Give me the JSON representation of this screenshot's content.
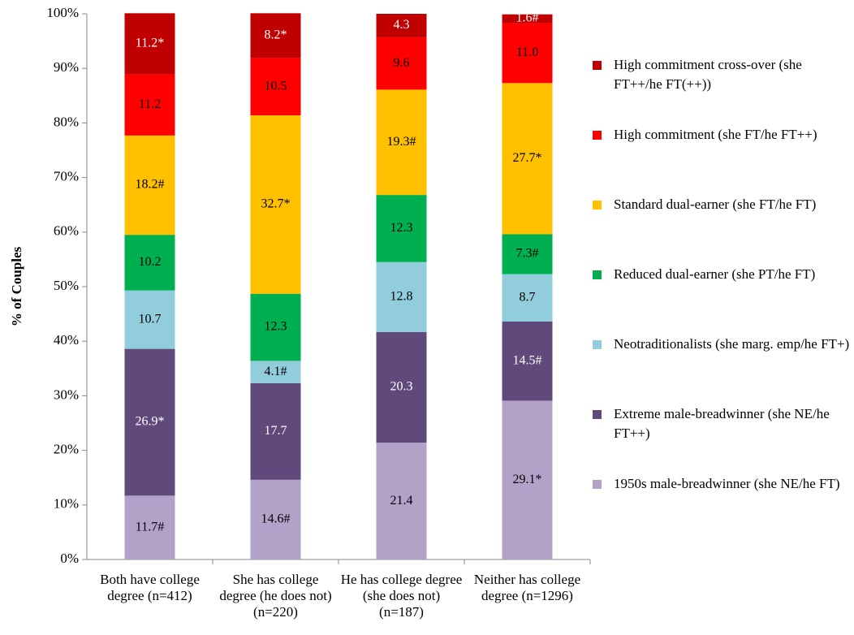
{
  "chart_data": {
    "type": "stacked_bar",
    "y_axis_label": "% of Couples",
    "categories": [
      "Both have college degree (n=412)",
      "She has college degree (he does not) (n=220)",
      "He has college degree (she does not) (n=187)",
      "Neither has college degree (n=1296)"
    ],
    "ylim": [
      0,
      100
    ],
    "yticks": [
      {
        "value": 0,
        "label": "0%"
      },
      {
        "value": 10,
        "label": "10%"
      },
      {
        "value": 20,
        "label": "20%"
      },
      {
        "value": 30,
        "label": "30%"
      },
      {
        "value": 40,
        "label": "40%"
      },
      {
        "value": 50,
        "label": "50%"
      },
      {
        "value": 60,
        "label": "60%"
      },
      {
        "value": 70,
        "label": "70%"
      },
      {
        "value": 80,
        "label": "80%"
      },
      {
        "value": 90,
        "label": "90%"
      },
      {
        "value": 100,
        "label": "100%"
      }
    ],
    "series": [
      {
        "name": "1950s male-breadwinner (she NE/he FT)",
        "color": "#b3a2c7",
        "label_color": "#000000",
        "values": [
          11.7,
          14.6,
          21.4,
          29.1
        ],
        "value_labels": [
          "11.7#",
          "14.6#",
          "21.4",
          "29.1*"
        ]
      },
      {
        "name": "Extreme male-breadwinner (she NE/he FT++)",
        "color": "#604a7b",
        "label_color": "#ffffff",
        "values": [
          26.9,
          17.7,
          20.3,
          14.5
        ],
        "value_labels": [
          "26.9*",
          "17.7",
          "20.3",
          "14.5#"
        ]
      },
      {
        "name": "Neotraditionalists (she marg. emp/he FT+)",
        "color": "#92cddc",
        "label_color": "#000000",
        "values": [
          10.7,
          4.1,
          12.8,
          8.7
        ],
        "value_labels": [
          "10.7",
          "4.1#",
          "12.8",
          "8.7"
        ]
      },
      {
        "name": "Reduced dual-earner (she PT/he FT)",
        "color": "#00b050",
        "label_color": "#000000",
        "values": [
          10.2,
          12.3,
          12.3,
          7.3
        ],
        "value_labels": [
          "10.2",
          "12.3",
          "12.3",
          "7.3#"
        ]
      },
      {
        "name": "Standard dual-earner (she FT/he FT)",
        "color": "#ffc000",
        "label_color": "#000000",
        "values": [
          18.2,
          32.7,
          19.3,
          27.7
        ],
        "value_labels": [
          "18.2#",
          "32.7*",
          "19.3#",
          "27.7*"
        ]
      },
      {
        "name": "High commitment (she FT/he FT++)",
        "color": "#ff0000",
        "label_color": "#000000",
        "values": [
          11.2,
          10.5,
          9.6,
          11.0
        ],
        "value_labels": [
          "11.2",
          "10.5",
          "9.6",
          "11.0"
        ]
      },
      {
        "name": "High commitment cross-over (she FT++/he FT(++))",
        "color": "#c00000",
        "label_color": "#ffffff",
        "values": [
          11.2,
          8.2,
          4.3,
          1.6
        ],
        "value_labels": [
          "11.2*",
          "8.2*",
          "4.3",
          "1.6#"
        ]
      }
    ]
  }
}
